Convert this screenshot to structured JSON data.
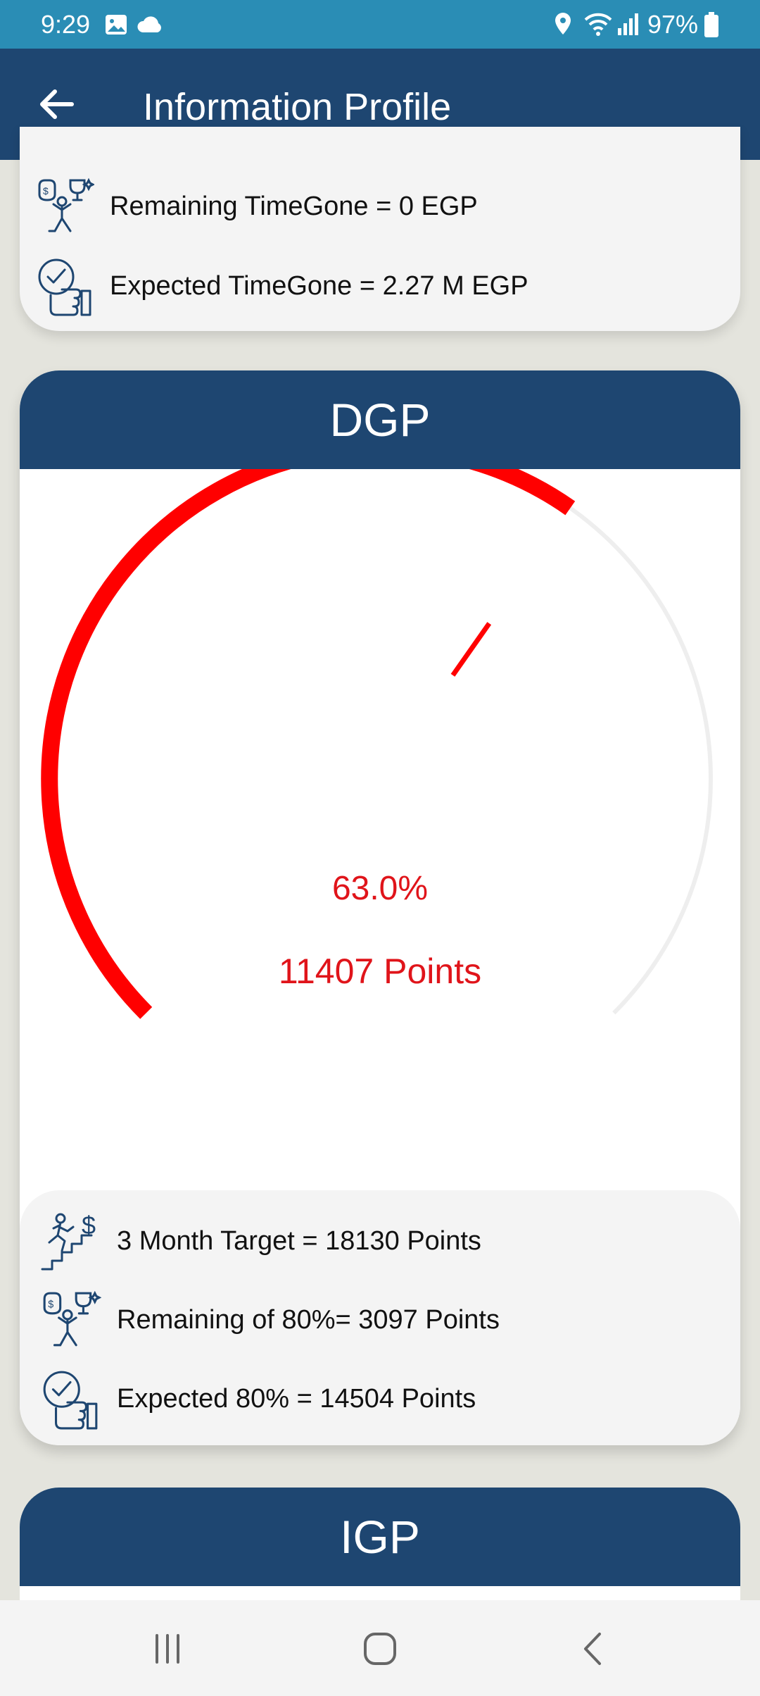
{
  "status_bar": {
    "time": "9:29",
    "battery": "97%"
  },
  "app_bar": {
    "title": "Information Profile"
  },
  "time_gone_card": {
    "rows": [
      {
        "label": "Remaining TimeGone = 0 EGP",
        "icon": "money-trophy-person-icon"
      },
      {
        "label": "Expected TimeGone = 2.27 M EGP",
        "icon": "thumbs-up-check-icon"
      }
    ]
  },
  "dgp": {
    "title": "DGP",
    "gauge": {
      "percent_label": "63.0%",
      "points_label": "11407 Points",
      "progress": 0.63,
      "color": "#ff0000",
      "track_color": "#eeeeee"
    },
    "details": [
      {
        "label": "3 Month Target = 18130 Points",
        "icon": "stairs-runner-dollar-icon"
      },
      {
        "label": "Remaining of 80%= 3097 Points",
        "icon": "money-trophy-person-icon"
      },
      {
        "label": "Expected 80% = 14504 Points",
        "icon": "thumbs-up-check-icon"
      }
    ]
  },
  "igp": {
    "title": "IGP"
  }
}
